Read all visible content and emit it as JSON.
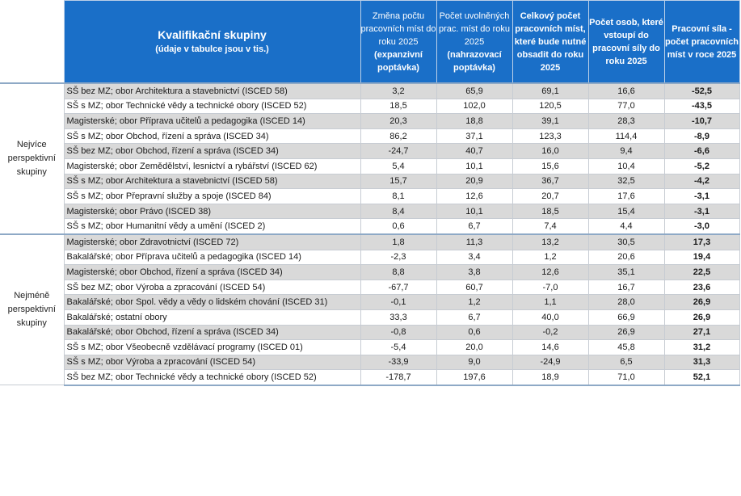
{
  "header": {
    "title": "Kvalifikační skupiny",
    "subtitle": "(údaje v tabulce jsou v tis.)",
    "col1_a": "Změna počtu pracovních míst do roku 2025",
    "col1_b": "(expanzivní poptávka)",
    "col2_a": "Počet uvolněných prac. míst do roku 2025",
    "col2_b": "(nahrazovací poptávka)",
    "col3": "Celkový počet pracovních míst, které bude nutné obsadit do roku 2025",
    "col4": "Počet osob, které vstoupí do pracovní síly do roku 2025",
    "col5": "Pracovní síla - počet pracovních míst v roce 2025"
  },
  "groups": [
    {
      "name": "Nejvíce perspektivní skupiny",
      "rows": [
        {
          "label": "SŠ bez MZ; obor Architektura a stavebnictví (ISCED 58)",
          "c1": "3,2",
          "c2": "65,9",
          "c3": "69,1",
          "c4": "16,6",
          "c5": "-52,5"
        },
        {
          "label": "SŠ s MZ; obor Technické vědy a technické obory (ISCED 52)",
          "c1": "18,5",
          "c2": "102,0",
          "c3": "120,5",
          "c4": "77,0",
          "c5": "-43,5"
        },
        {
          "label": "Magisterské; obor Příprava učitelů a pedagogika (ISCED 14)",
          "c1": "20,3",
          "c2": "18,8",
          "c3": "39,1",
          "c4": "28,3",
          "c5": "-10,7"
        },
        {
          "label": "SŠ s MZ; obor Obchod, řízení a správa (ISCED 34)",
          "c1": "86,2",
          "c2": "37,1",
          "c3": "123,3",
          "c4": "114,4",
          "c5": "-8,9"
        },
        {
          "label": "SŠ bez MZ; obor Obchod, řízení a správa (ISCED 34)",
          "c1": "-24,7",
          "c2": "40,7",
          "c3": "16,0",
          "c4": "9,4",
          "c5": "-6,6"
        },
        {
          "label": "Magisterské; obor Zemědělství, lesnictví a rybářství (ISCED 62)",
          "c1": "5,4",
          "c2": "10,1",
          "c3": "15,6",
          "c4": "10,4",
          "c5": "-5,2"
        },
        {
          "label": "SŠ s MZ; obor Architektura a stavebnictví (ISCED 58)",
          "c1": "15,7",
          "c2": "20,9",
          "c3": "36,7",
          "c4": "32,5",
          "c5": "-4,2"
        },
        {
          "label": "SŠ s MZ; obor Přepravní služby a spoje (ISCED 84)",
          "c1": "8,1",
          "c2": "12,6",
          "c3": "20,7",
          "c4": "17,6",
          "c5": "-3,1"
        },
        {
          "label": "Magisterské; obor Právo (ISCED 38)",
          "c1": "8,4",
          "c2": "10,1",
          "c3": "18,5",
          "c4": "15,4",
          "c5": "-3,1"
        },
        {
          "label": "SŠ s MZ; obor Humanitní vědy a umění (ISCED 2)",
          "c1": "0,6",
          "c2": "6,7",
          "c3": "7,4",
          "c4": "4,4",
          "c5": "-3,0"
        }
      ]
    },
    {
      "name": "Nejméně perspektivní skupiny",
      "rows": [
        {
          "label": "Magisterské; obor Zdravotnictví (ISCED 72)",
          "c1": "1,8",
          "c2": "11,3",
          "c3": "13,2",
          "c4": "30,5",
          "c5": "17,3"
        },
        {
          "label": "Bakalářské; obor Příprava učitelů a pedagogika (ISCED 14)",
          "c1": "-2,3",
          "c2": "3,4",
          "c3": "1,2",
          "c4": "20,6",
          "c5": "19,4"
        },
        {
          "label": "Magisterské; obor Obchod, řízení a správa (ISCED 34)",
          "c1": "8,8",
          "c2": "3,8",
          "c3": "12,6",
          "c4": "35,1",
          "c5": "22,5"
        },
        {
          "label": "SŠ bez MZ; obor Výroba a zpracování (ISCED 54)",
          "c1": "-67,7",
          "c2": "60,7",
          "c3": "-7,0",
          "c4": "16,7",
          "c5": "23,6"
        },
        {
          "label": "Bakalářské; obor Spol. vědy a vědy o lidském chování (ISCED 31)",
          "c1": "-0,1",
          "c2": "1,2",
          "c3": "1,1",
          "c4": "28,0",
          "c5": "26,9"
        },
        {
          "label": "Bakalářské; ostatní obory",
          "c1": "33,3",
          "c2": "6,7",
          "c3": "40,0",
          "c4": "66,9",
          "c5": "26,9"
        },
        {
          "label": "Bakalářské; obor Obchod, řízení a správa (ISCED 34)",
          "c1": "-0,8",
          "c2": "0,6",
          "c3": "-0,2",
          "c4": "26,9",
          "c5": "27,1"
        },
        {
          "label": "SŠ s MZ; obor Všeobecně vzdělávací programy (ISCED 01)",
          "c1": "-5,4",
          "c2": "20,0",
          "c3": "14,6",
          "c4": "45,8",
          "c5": "31,2"
        },
        {
          "label": "SŠ s MZ; obor Výroba a zpracování (ISCED 54)",
          "c1": "-33,9",
          "c2": "9,0",
          "c3": "-24,9",
          "c4": "6,5",
          "c5": "31,3"
        },
        {
          "label": "SŠ bez MZ; obor Technické vědy a technické obory (ISCED 52)",
          "c1": "-178,7",
          "c2": "197,6",
          "c3": "18,9",
          "c4": "71,0",
          "c5": "52,1"
        }
      ]
    }
  ]
}
